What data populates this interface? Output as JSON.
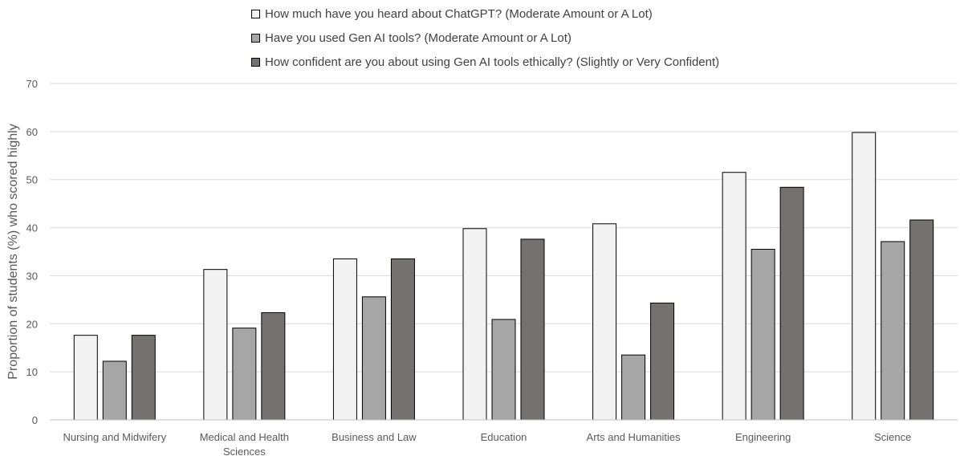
{
  "chart_data": {
    "type": "bar",
    "title": "",
    "xlabel": "",
    "ylabel": "Proportion of students (%) who scored highly",
    "ylim": [
      0,
      70
    ],
    "yticks": [
      0,
      10,
      20,
      30,
      40,
      50,
      60,
      70
    ],
    "grid": true,
    "legend_position": "top",
    "categories": [
      [
        "Nursing and Midwifery"
      ],
      [
        "Medical and Health",
        "Sciences"
      ],
      [
        "Business and Law"
      ],
      [
        "Education"
      ],
      [
        "Arts and Humanities"
      ],
      [
        "Engineering"
      ],
      [
        "Science"
      ]
    ],
    "series": [
      {
        "name": "How much have you heard about ChatGPT? (Moderate Amount or A Lot)",
        "color": "#f2f2f2",
        "values": [
          17.6,
          31.3,
          33.5,
          39.8,
          40.8,
          51.5,
          59.8
        ]
      },
      {
        "name": "Have you used Gen AI tools? (Moderate Amount or A Lot)",
        "color": "#a6a6a6",
        "values": [
          12.2,
          19.1,
          25.6,
          20.9,
          13.5,
          35.5,
          37.1
        ]
      },
      {
        "name": "How confident are you about using Gen AI tools ethically? (Slightly or Very Confident)",
        "color": "#767171",
        "values": [
          17.6,
          22.3,
          33.5,
          37.6,
          24.3,
          48.4,
          41.6
        ]
      }
    ]
  }
}
